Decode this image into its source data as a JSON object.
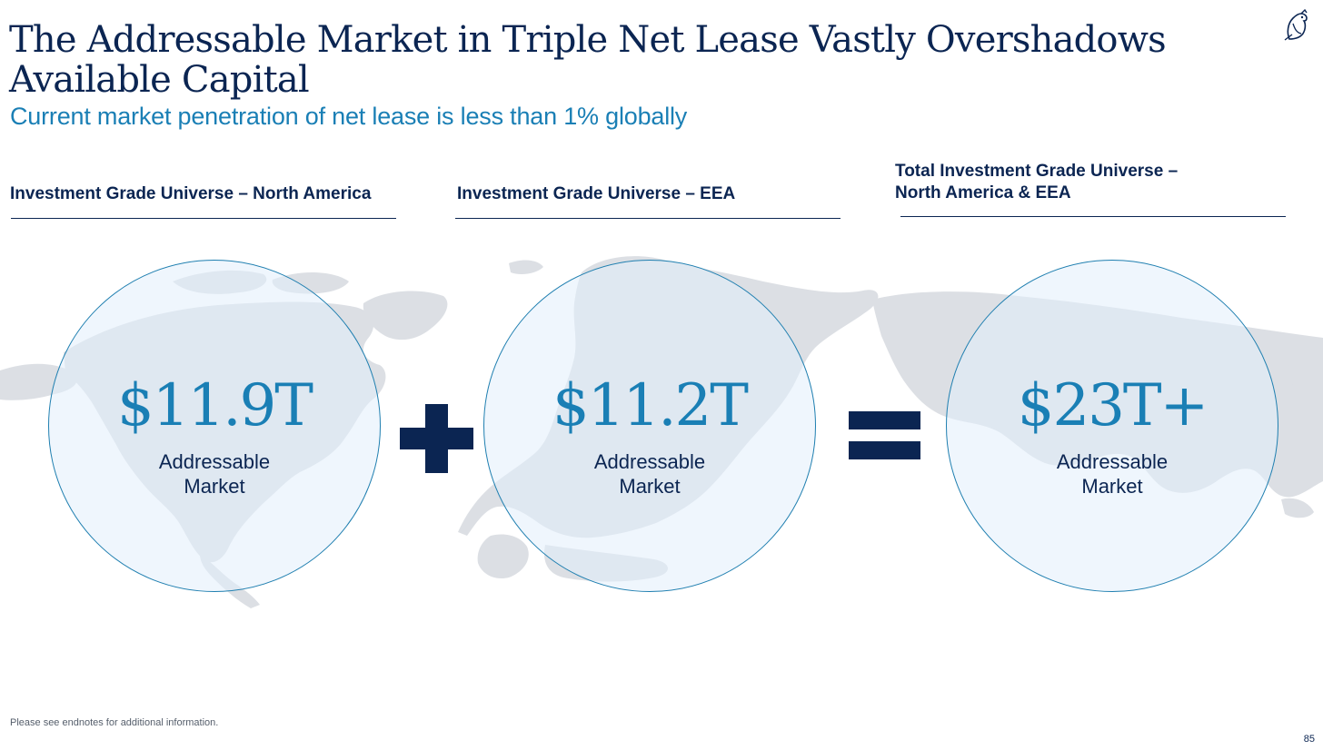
{
  "slide": {
    "title": "The Addressable Market in Triple Net Lease Vastly Overshadows Available Capital",
    "subtitle": "Current market penetration of net lease is less than 1% globally",
    "footnote": "Please see endnotes for additional information.",
    "page_number": "85",
    "logo_icon": "bird-logo-icon"
  },
  "columns": [
    {
      "heading": "Investment Grade Universe – North America",
      "value": "$11.9T",
      "label_line1": "Addressable",
      "label_line2": "Market"
    },
    {
      "heading": "Investment Grade Universe – EEA",
      "value": "$11.2T",
      "label_line1": "Addressable",
      "label_line2": "Market"
    },
    {
      "heading_line1": "Total Investment Grade Universe –",
      "heading_line2": "North America & EEA",
      "value": "$23T+",
      "label_line1": "Addressable",
      "label_line2": "Market"
    }
  ],
  "operators": [
    "plus-icon",
    "equals-icon"
  ],
  "colors": {
    "navy": "#0b2552",
    "accent_blue": "#1a7fb5",
    "map_gray": "#dcdfe4",
    "bubble_fill": "#e2eefc"
  }
}
